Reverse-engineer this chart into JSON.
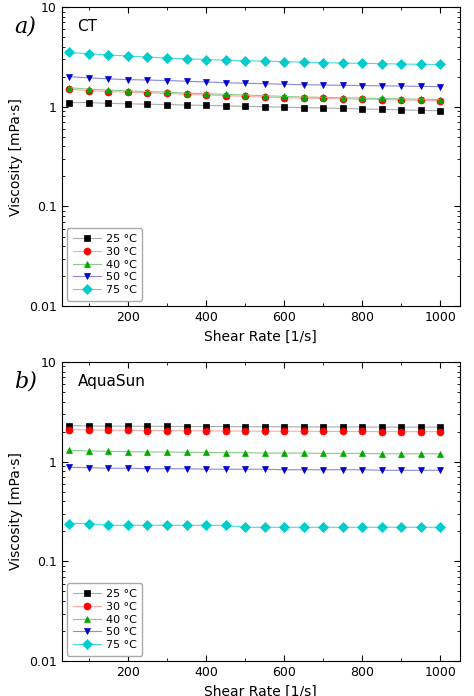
{
  "shear_rates": [
    50,
    100,
    150,
    200,
    250,
    300,
    350,
    400,
    450,
    500,
    550,
    600,
    650,
    700,
    750,
    800,
    850,
    900,
    950,
    1000
  ],
  "CT": {
    "label": "CT",
    "25C": [
      1.1,
      1.1,
      1.08,
      1.07,
      1.06,
      1.05,
      1.04,
      1.03,
      1.02,
      1.01,
      1.0,
      0.99,
      0.98,
      0.97,
      0.96,
      0.95,
      0.94,
      0.93,
      0.92,
      0.91
    ],
    "30C": [
      1.5,
      1.45,
      1.42,
      1.4,
      1.38,
      1.36,
      1.33,
      1.31,
      1.29,
      1.27,
      1.25,
      1.23,
      1.22,
      1.21,
      1.2,
      1.19,
      1.18,
      1.17,
      1.16,
      1.15
    ],
    "40C": [
      1.55,
      1.5,
      1.47,
      1.44,
      1.42,
      1.4,
      1.37,
      1.35,
      1.33,
      1.31,
      1.29,
      1.27,
      1.25,
      1.24,
      1.23,
      1.22,
      1.21,
      1.2,
      1.19,
      1.18
    ],
    "50C": [
      2.0,
      1.95,
      1.9,
      1.87,
      1.85,
      1.83,
      1.8,
      1.77,
      1.74,
      1.72,
      1.7,
      1.68,
      1.66,
      1.65,
      1.64,
      1.63,
      1.62,
      1.61,
      1.6,
      1.59
    ],
    "75C": [
      3.5,
      3.4,
      3.3,
      3.22,
      3.15,
      3.08,
      3.02,
      2.97,
      2.93,
      2.89,
      2.86,
      2.83,
      2.8,
      2.77,
      2.74,
      2.72,
      2.7,
      2.68,
      2.66,
      2.65
    ]
  },
  "AquaSun": {
    "label": "AquaSun",
    "25C": [
      2.3,
      2.28,
      2.27,
      2.27,
      2.26,
      2.26,
      2.25,
      2.25,
      2.25,
      2.24,
      2.24,
      2.24,
      2.23,
      2.23,
      2.23,
      2.23,
      2.22,
      2.22,
      2.22,
      2.22
    ],
    "30C": [
      2.1,
      2.08,
      2.07,
      2.06,
      2.05,
      2.05,
      2.04,
      2.04,
      2.03,
      2.03,
      2.02,
      2.02,
      2.02,
      2.01,
      2.01,
      2.01,
      2.0,
      2.0,
      2.0,
      2.0
    ],
    "40C": [
      1.3,
      1.28,
      1.27,
      1.26,
      1.25,
      1.25,
      1.24,
      1.24,
      1.23,
      1.23,
      1.22,
      1.22,
      1.22,
      1.21,
      1.21,
      1.21,
      1.2,
      1.2,
      1.2,
      1.2
    ],
    "50C": [
      0.88,
      0.87,
      0.86,
      0.86,
      0.85,
      0.85,
      0.85,
      0.84,
      0.84,
      0.84,
      0.84,
      0.83,
      0.83,
      0.83,
      0.83,
      0.83,
      0.82,
      0.82,
      0.82,
      0.82
    ],
    "75C": [
      0.24,
      0.24,
      0.23,
      0.23,
      0.23,
      0.23,
      0.23,
      0.23,
      0.23,
      0.22,
      0.22,
      0.22,
      0.22,
      0.22,
      0.22,
      0.22,
      0.22,
      0.22,
      0.22,
      0.22
    ]
  },
  "temps": [
    "25",
    "30",
    "40",
    "50",
    "75"
  ],
  "line_colors": {
    "25": "#aaaaaa",
    "30": "#ffaaaa",
    "40": "#88cc88",
    "50": "#8888dd",
    "75": "#44dddd"
  },
  "marker_colors": {
    "25": "#000000",
    "30": "#ff0000",
    "40": "#00aa00",
    "50": "#0000cc",
    "75": "#00cccc"
  },
  "markers": {
    "25": "s",
    "30": "o",
    "40": "^",
    "50": "v",
    "75": "D"
  },
  "ylabel": "Viscosity [mPa·s]",
  "xlabel": "Shear Rate [1/s]",
  "xlim": [
    30,
    1050
  ],
  "ylim_log": [
    0.01,
    10
  ],
  "yticks": [
    0.01,
    0.1,
    1,
    10
  ],
  "xticks": [
    200,
    400,
    600,
    800,
    1000
  ],
  "markersize": 5,
  "linewidth": 0.8,
  "legend_fontsize": 8,
  "tick_fontsize": 9,
  "label_fontsize": 10,
  "panel_label_fontsize": 16
}
